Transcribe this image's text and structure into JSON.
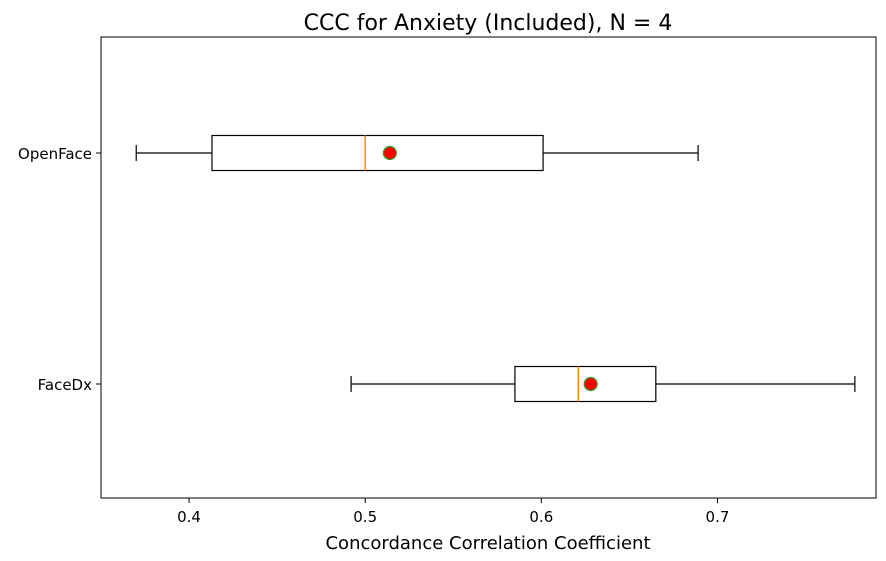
{
  "chart_data": {
    "type": "boxplot",
    "orientation": "horizontal",
    "title": "CCC for Anxiety (Included), N = 4",
    "xlabel": "Concordance Correlation Coefficient",
    "ylabel": "",
    "xlim": [
      0.35,
      0.79
    ],
    "xticks": [
      0.4,
      0.5,
      0.6,
      0.7
    ],
    "xtick_labels": [
      "0.4",
      "0.5",
      "0.6",
      "0.7"
    ],
    "grid": false,
    "boxes": [
      {
        "label": "OpenFace",
        "whisker_low": 0.37,
        "q1": 0.413,
        "median": 0.5,
        "q3": 0.601,
        "whisker_high": 0.689,
        "mean": 0.514
      },
      {
        "label": "FaceDx",
        "whisker_low": 0.492,
        "q1": 0.585,
        "median": 0.621,
        "q3": 0.665,
        "whisker_high": 0.778,
        "mean": 0.628
      }
    ],
    "colors": {
      "box": "#000000",
      "median": "#ff7f0e",
      "mean_fill": "#ff0000",
      "mean_edge": "#2ca02c"
    }
  }
}
